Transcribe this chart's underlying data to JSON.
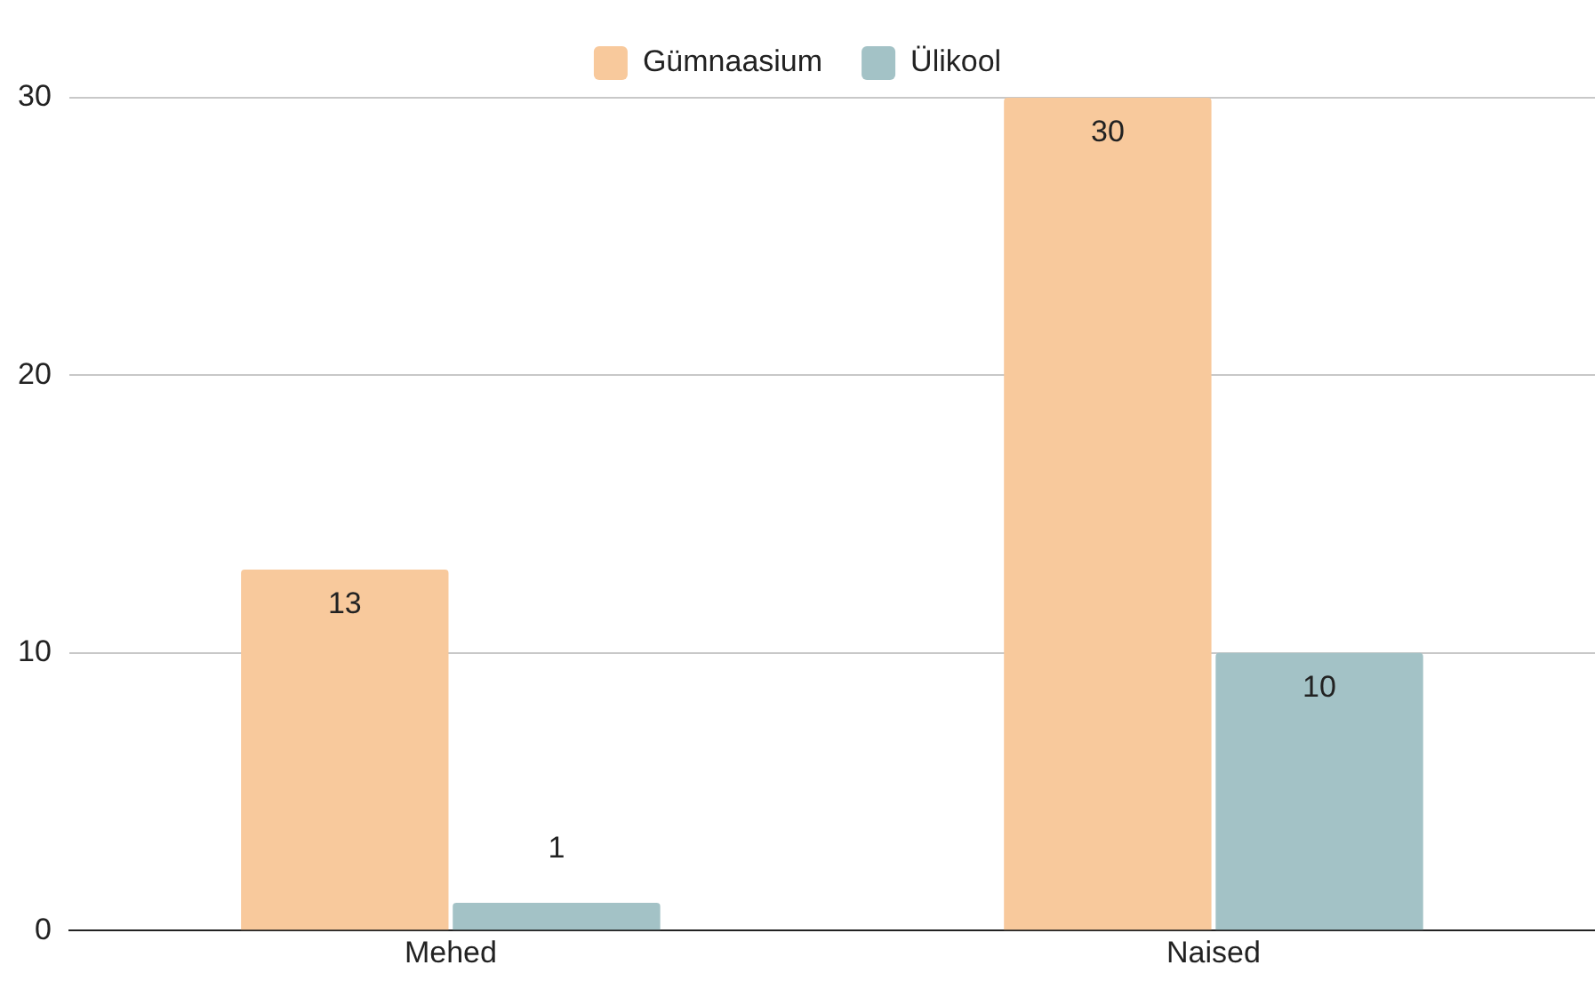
{
  "chart_data": {
    "type": "bar",
    "categories": [
      "Mehed",
      "Naised"
    ],
    "series": [
      {
        "name": "Gümnaasium",
        "color": "#f8c99c",
        "values": [
          13,
          30
        ]
      },
      {
        "name": "Ülikool",
        "color": "#a3c2c6",
        "values": [
          1,
          10
        ]
      }
    ],
    "ylim": [
      0,
      30
    ],
    "yticks": [
      0,
      10,
      20,
      30
    ],
    "grid": "y",
    "legend": "top",
    "data_labels": true
  }
}
